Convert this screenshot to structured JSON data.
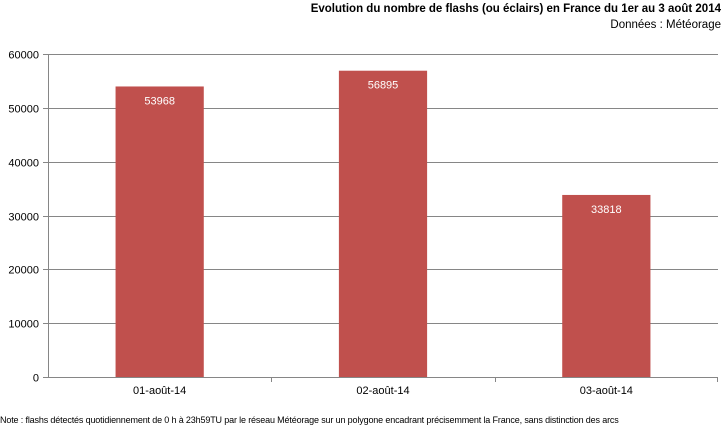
{
  "title": "Evolution du nombre de flashs (ou éclairs) en France du 1er au 3 août 2014",
  "subtitle": "Données : Météorage",
  "note": "Note : flashs détectés quotidiennement de 0 h à 23h59TU par le réseau Météorage sur un polygone encadrant précisemment la France, sans distinction des arcs",
  "colors": {
    "bar": "#c0504d",
    "grid": "#868686",
    "axis": "#868686",
    "label": "#ffffff"
  },
  "chart_data": {
    "type": "bar",
    "categories": [
      "01-août-14",
      "02-août-14",
      "03-août-14"
    ],
    "values": [
      53968,
      56895,
      33818
    ],
    "title": "Evolution du nombre de flashs (ou éclairs) en France du 1er au 3 août 2014",
    "xlabel": "",
    "ylabel": "",
    "ylim": [
      0,
      60000
    ],
    "yticks": [
      0,
      10000,
      20000,
      30000,
      40000,
      50000,
      60000
    ],
    "grid": true,
    "legend": "none",
    "data_labels": true
  }
}
